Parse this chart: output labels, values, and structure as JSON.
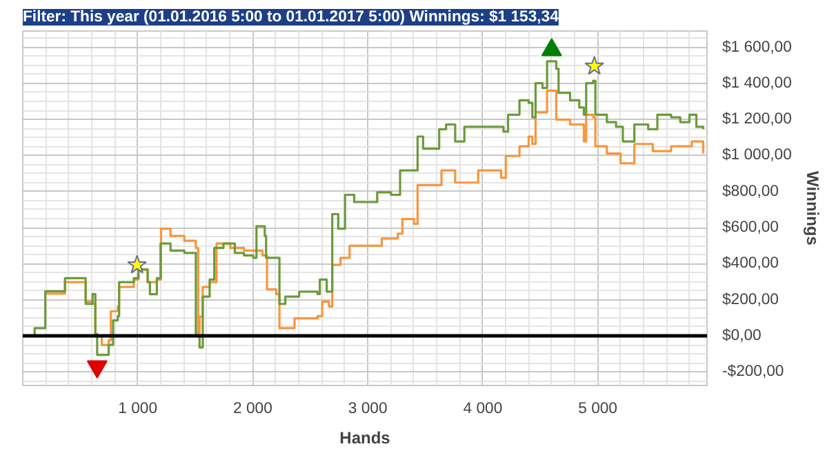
{
  "chart_data": {
    "type": "step",
    "title": "Filter: This year (01.01.2016 5:00 to 01.01.2017 5:00) Winnings: $1 153,34",
    "xlabel": "Hands",
    "ylabel": "Winnings",
    "xlim": [
      0,
      5950
    ],
    "ylim": [
      -275,
      1690
    ],
    "xticks": [
      {
        "value": 1000,
        "label": "1 000"
      },
      {
        "value": 2000,
        "label": "2 000"
      },
      {
        "value": 3000,
        "label": "3 000"
      },
      {
        "value": 4000,
        "label": "4 000"
      },
      {
        "value": 5000,
        "label": "5 000"
      }
    ],
    "yticks": [
      {
        "value": -200,
        "label": "-$200,00"
      },
      {
        "value": 0,
        "label": "$0,00"
      },
      {
        "value": 200,
        "label": "$200,00"
      },
      {
        "value": 400,
        "label": "$400,00"
      },
      {
        "value": 600,
        "label": "$600,00"
      },
      {
        "value": 800,
        "label": "$800,00"
      },
      {
        "value": 1000,
        "label": "$1 000,00"
      },
      {
        "value": 1200,
        "label": "$1 200,00"
      },
      {
        "value": 1400,
        "label": "$1 400,00"
      },
      {
        "value": 1600,
        "label": "$1 600,00"
      }
    ],
    "grid": true,
    "line_style": "solid",
    "ref_lines": [
      {
        "axis": "y",
        "value": 0,
        "color": "#000000"
      }
    ],
    "series": [
      {
        "color": "#f7963c",
        "x": [
          196,
          367,
          547,
          607,
          631,
          687,
          747,
          766,
          826,
          838,
          966,
          1006,
          1086,
          1166,
          1202,
          1285,
          1405,
          1505,
          1525,
          1537,
          1565,
          1625,
          1685,
          1804,
          1924,
          2084,
          2124,
          2204,
          2232,
          2363,
          2563,
          2603,
          2663,
          2691,
          2763,
          2842,
          2962,
          3122,
          3261,
          3301,
          3401,
          3433,
          3641,
          3760,
          3960,
          4160,
          4200,
          4319,
          4399,
          4431,
          4459,
          4559,
          4639,
          4759,
          4879,
          4899,
          4959,
          4979,
          5079,
          5198,
          5298,
          5318,
          5478,
          5638,
          5817,
          5917
        ],
        "values": [
          234,
          298,
          190,
          177,
          0,
          -51,
          -24,
          137,
          163,
          271,
          312,
          368,
          298,
          312,
          594,
          554,
          527,
          487,
          0,
          107,
          271,
          298,
          512,
          487,
          473,
          446,
          258,
          231,
          43,
          97,
          110,
          190,
          163,
          393,
          433,
          500,
          500,
          540,
          567,
          648,
          621,
          836,
          917,
          850,
          917,
          876,
          997,
          1051,
          1105,
          1064,
          1239,
          1360,
          1199,
          1172,
          1078,
          1226,
          1212,
          1051,
          1011,
          957,
          957,
          1064,
          1024,
          1051,
          1078,
          1011
        ]
      },
      {
        "color": "#6b9b3a",
        "x": [
          28,
          103,
          168,
          196,
          367,
          547,
          607,
          631,
          647,
          707,
          747,
          786,
          826,
          838,
          966,
          1006,
          1086,
          1106,
          1166,
          1198,
          1285,
          1405,
          1485,
          1505,
          1537,
          1565,
          1625,
          1665,
          1745,
          1844,
          1924,
          2004,
          2032,
          2104,
          2116,
          2204,
          2232,
          2283,
          2403,
          2563,
          2583,
          2643,
          2691,
          2743,
          2802,
          2882,
          3082,
          3202,
          3281,
          3433,
          3481,
          3621,
          3681,
          3760,
          3840,
          4140,
          4180,
          4220,
          4319,
          4399,
          4431,
          4459,
          4519,
          4559,
          4639,
          4659,
          4759,
          4839,
          4879,
          4899,
          4959,
          4979,
          5079,
          5159,
          5218,
          5318,
          5438,
          5518,
          5638,
          5717,
          5797,
          5857,
          5917
        ],
        "values": [
          0,
          43,
          43,
          247,
          320,
          177,
          232,
          10,
          -105,
          -105,
          -50,
          86,
          110,
          298,
          320,
          368,
          298,
          231,
          320,
          512,
          473,
          460,
          460,
          0,
          -64,
          218,
          312,
          487,
          512,
          460,
          446,
          433,
          608,
          554,
          433,
          433,
          177,
          218,
          245,
          232,
          312,
          245,
          675,
          594,
          782,
          742,
          796,
          782,
          917,
          1105,
          1038,
          1146,
          1172,
          1078,
          1159,
          1159,
          1132,
          1226,
          1306,
          1292,
          1212,
          1401,
          1374,
          1522,
          1481,
          1347,
          1306,
          1266,
          1226,
          1401,
          1414,
          1226,
          1185,
          1159,
          1078,
          1172,
          1146,
          1226,
          1212,
          1185,
          1226,
          1159,
          1146
        ]
      },
      {
        "type": "scatter",
        "marker": "triangle",
        "color": "#e00000",
        "x": [
          647
        ],
        "values": [
          -170
        ]
      },
      {
        "type": "scatter",
        "marker": "triangle",
        "color": "#008000",
        "x": [
          4599
        ],
        "values": [
          1585
        ]
      },
      {
        "type": "scatter",
        "marker": "star",
        "color": "#ffff00",
        "x": [
          994,
          4970
        ],
        "values": [
          393,
          1495
        ]
      }
    ]
  }
}
